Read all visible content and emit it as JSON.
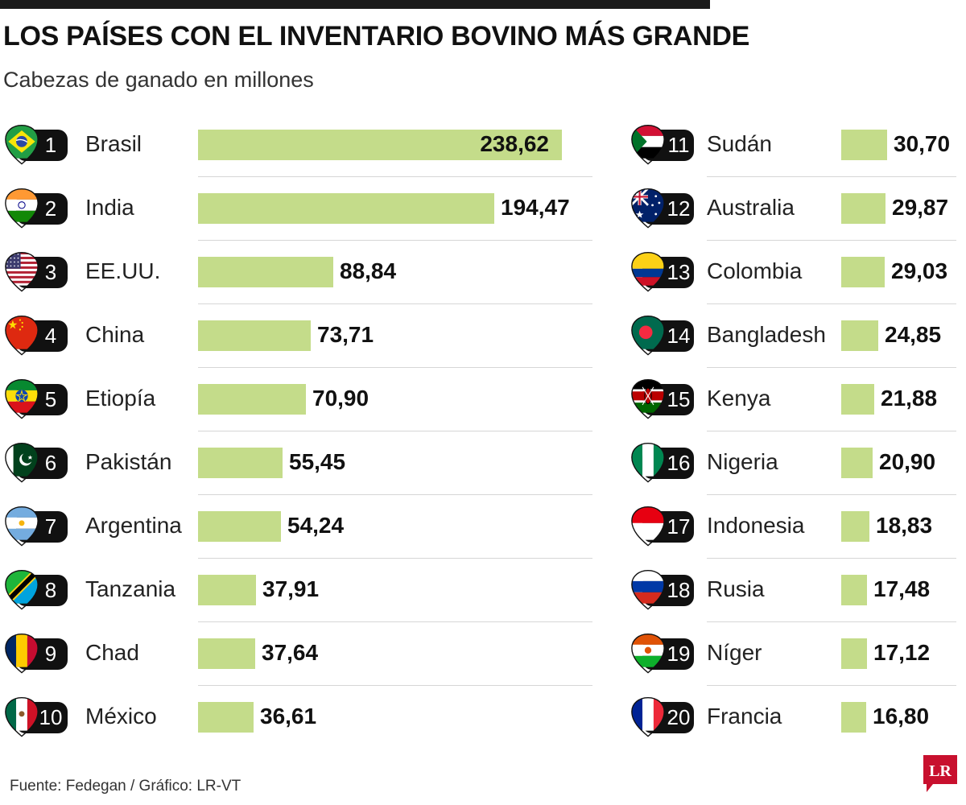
{
  "header": {
    "title": "LOS PAÍSES CON EL INVENTARIO BOVINO MÁS GRANDE",
    "subtitle": "Cabezas de ganado en millones"
  },
  "footer": {
    "source": "Fuente: Fedegan  / Gráfico: LR-VT",
    "logo_text": "LR"
  },
  "colors": {
    "bar": "#c4dc8a",
    "badge": "#111111",
    "logo": "#c8102e"
  },
  "chart_data": {
    "type": "bar",
    "orientation": "horizontal",
    "title": "LOS PAÍSES CON EL INVENTARIO BOVINO MÁS GRANDE",
    "subtitle": "Cabezas de ganado en millones",
    "grid": false,
    "items": [
      {
        "rank": "1",
        "country": "Brasil",
        "value": 238.62,
        "label": "238,62",
        "flag": "brazil-flag-icon"
      },
      {
        "rank": "2",
        "country": "India",
        "value": 194.47,
        "label": "194,47",
        "flag": "india-flag-icon"
      },
      {
        "rank": "3",
        "country": "EE.UU.",
        "value": 88.84,
        "label": "88,84",
        "flag": "usa-flag-icon"
      },
      {
        "rank": "4",
        "country": "China",
        "value": 73.71,
        "label": "73,71",
        "flag": "china-flag-icon"
      },
      {
        "rank": "5",
        "country": "Etiopía",
        "value": 70.9,
        "label": "70,90",
        "flag": "ethiopia-flag-icon"
      },
      {
        "rank": "6",
        "country": "Pakistán",
        "value": 55.45,
        "label": "55,45",
        "flag": "pakistan-flag-icon"
      },
      {
        "rank": "7",
        "country": "Argentina",
        "value": 54.24,
        "label": "54,24",
        "flag": "argentina-flag-icon"
      },
      {
        "rank": "8",
        "country": "Tanzania",
        "value": 37.91,
        "label": "37,91",
        "flag": "tanzania-flag-icon"
      },
      {
        "rank": "9",
        "country": "Chad",
        "value": 37.64,
        "label": "37,64",
        "flag": "chad-flag-icon"
      },
      {
        "rank": "10",
        "country": "México",
        "value": 36.61,
        "label": "36,61",
        "flag": "mexico-flag-icon"
      },
      {
        "rank": "11",
        "country": "Sudán",
        "value": 30.7,
        "label": "30,70",
        "flag": "sudan-flag-icon"
      },
      {
        "rank": "12",
        "country": "Australia",
        "value": 29.87,
        "label": "29,87",
        "flag": "australia-flag-icon"
      },
      {
        "rank": "13",
        "country": "Colombia",
        "value": 29.03,
        "label": "29,03",
        "flag": "colombia-flag-icon"
      },
      {
        "rank": "14",
        "country": "Bangladesh",
        "value": 24.85,
        "label": "24,85",
        "flag": "bangladesh-flag-icon"
      },
      {
        "rank": "15",
        "country": "Kenya",
        "value": 21.88,
        "label": "21,88",
        "flag": "kenya-flag-icon"
      },
      {
        "rank": "16",
        "country": "Nigeria",
        "value": 20.9,
        "label": "20,90",
        "flag": "nigeria-flag-icon"
      },
      {
        "rank": "17",
        "country": "Indonesia",
        "value": 18.83,
        "label": "18,83",
        "flag": "indonesia-flag-icon"
      },
      {
        "rank": "18",
        "country": "Rusia",
        "value": 17.48,
        "label": "17,48",
        "flag": "russia-flag-icon"
      },
      {
        "rank": "19",
        "country": "Níger",
        "value": 17.12,
        "label": "17,12",
        "flag": "niger-flag-icon"
      },
      {
        "rank": "20",
        "country": "Francia",
        "value": 16.8,
        "label": "16,80",
        "flag": "france-flag-icon"
      }
    ]
  }
}
